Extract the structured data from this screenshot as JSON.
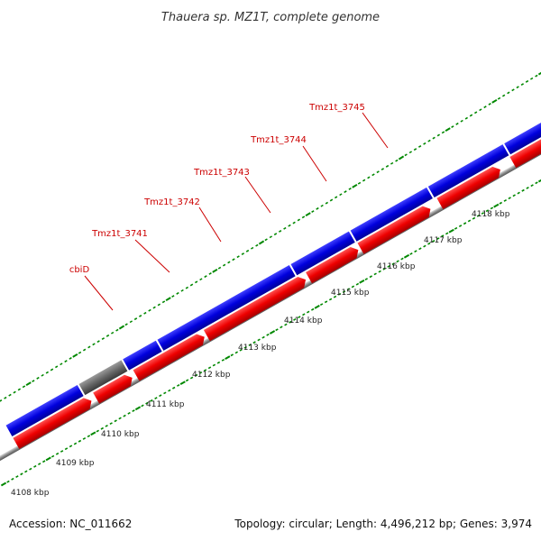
{
  "title": "Thauera sp. MZ1T, complete genome",
  "footer": {
    "accession": "Accession: NC_011662",
    "topology": "Topology: circular; Length: 4,496,212 bp; Genes: 3,974"
  },
  "tick_labels": [
    "4108 kbp",
    "4109 kbp",
    "4110 kbp",
    "4111 kbp",
    "4112 kbp",
    "4113 kbp",
    "4114 kbp",
    "4115 kbp",
    "4116 kbp",
    "4117 kbp",
    "4118 kbp"
  ],
  "gene_labels": [
    "cbiD",
    "Tmz1t_3741",
    "Tmz1t_3742",
    "Tmz1t_3743",
    "Tmz1t_3744",
    "Tmz1t_3745"
  ],
  "colors": {
    "plus_strand_gene": "#0000dd",
    "minus_strand_gene": "#ee0000",
    "highlight_gene": "#00e5e5",
    "other_gene": "#6a5acd",
    "pseudo_gene": "#666666",
    "label": "#cc0000",
    "ticks": "#008800",
    "backbone": "#888888"
  }
}
